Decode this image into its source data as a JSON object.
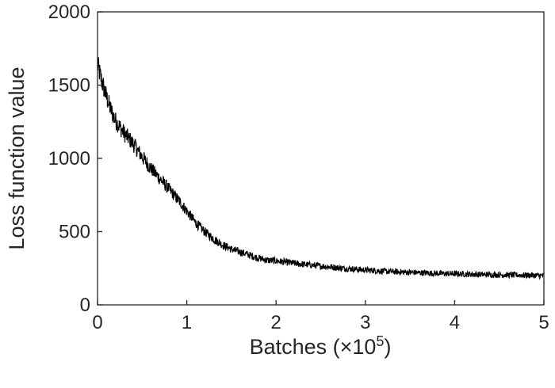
{
  "chart_data": {
    "type": "line",
    "title": "",
    "xlabel": "Batches (×10",
    "xlabel_exponent": "5",
    "xlabel_suffix": ")",
    "ylabel": "Loss function value",
    "xlim": [
      0,
      5
    ],
    "ylim": [
      0,
      2000
    ],
    "x_ticks": [
      "0",
      "1",
      "2",
      "3",
      "4",
      "5"
    ],
    "y_ticks": [
      "0",
      "500",
      "1000",
      "1500",
      "2000"
    ],
    "grid": false,
    "legend": "none",
    "line_color": "#000000",
    "series": [
      {
        "x": [
          0,
          0.05,
          0.1,
          0.15,
          0.2,
          0.3,
          0.4,
          0.5,
          0.6,
          0.7,
          0.8,
          0.9,
          1.0,
          1.1,
          1.2,
          1.3,
          1.4,
          1.5,
          1.6,
          1.7,
          1.8,
          1.9,
          2.0,
          2.25,
          2.5,
          2.75,
          3.0,
          3.25,
          3.5,
          3.75,
          4.0,
          4.25,
          4.5,
          4.75,
          5.0
        ],
        "y": [
          1640,
          1520,
          1420,
          1330,
          1260,
          1170,
          1100,
          1010,
          930,
          860,
          790,
          720,
          640,
          560,
          500,
          450,
          410,
          380,
          360,
          340,
          320,
          305,
          300,
          280,
          265,
          250,
          238,
          228,
          222,
          216,
          212,
          208,
          205,
          203,
          200
        ]
      }
    ]
  }
}
